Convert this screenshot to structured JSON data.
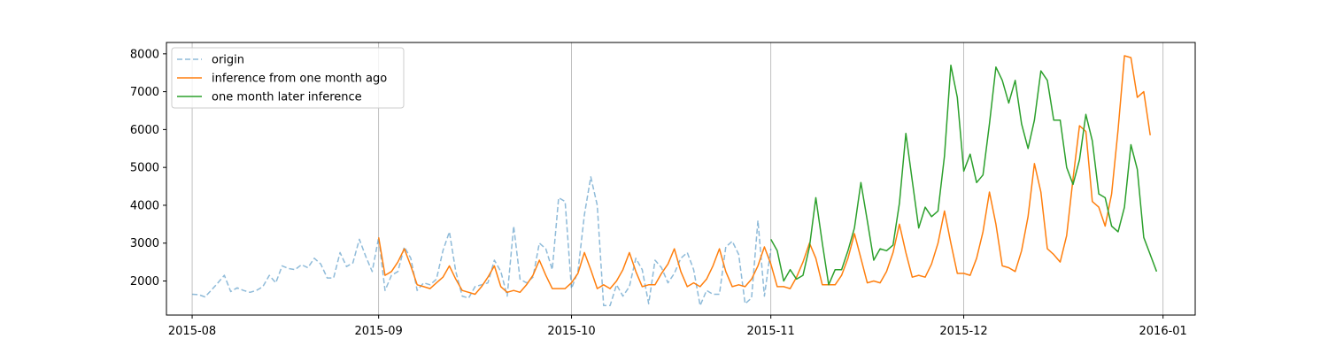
{
  "chart_data": {
    "type": "line",
    "title": "",
    "xlabel": "",
    "ylabel": "",
    "x_axis_type": "date",
    "xlim": [
      "2015-07-30",
      "2016-01-06"
    ],
    "ylim": [
      1100,
      8300
    ],
    "grid": "vertical",
    "legend_position": "upper-left",
    "x_ticks": [
      {
        "date": "2015-08-03",
        "label": "2015-08"
      },
      {
        "date": "2015-09-01",
        "label": "2015-09"
      },
      {
        "date": "2015-10-01",
        "label": "2015-10"
      },
      {
        "date": "2015-11-01",
        "label": "2015-11"
      },
      {
        "date": "2015-12-01",
        "label": "2015-12"
      },
      {
        "date": "2016-01-01",
        "label": "2016-01"
      }
    ],
    "y_ticks": [
      2000,
      3000,
      4000,
      5000,
      6000,
      7000,
      8000
    ],
    "series": [
      {
        "name": "origin",
        "color": "#1f77b4",
        "opacity": 0.5,
        "dash": "6,3",
        "start_date": "2015-08-03",
        "values": [
          1650,
          1640,
          1580,
          1760,
          1950,
          2150,
          1720,
          1820,
          1750,
          1700,
          1750,
          1850,
          2150,
          1950,
          2400,
          2330,
          2300,
          2430,
          2350,
          2600,
          2450,
          2080,
          2080,
          2750,
          2380,
          2480,
          3100,
          2650,
          2250,
          3150,
          1750,
          2150,
          2250,
          2900,
          2600,
          1750,
          1950,
          1900,
          2050,
          2800,
          3300,
          2250,
          1600,
          1550,
          1850,
          1900,
          1950,
          2550,
          2250,
          1600,
          3450,
          2050,
          1950,
          2100,
          3000,
          2850,
          2300,
          4200,
          4100,
          1800,
          2250,
          3750,
          4750,
          4000,
          1350,
          1350,
          1900,
          1600,
          1850,
          2600,
          2300,
          1400,
          2550,
          2350,
          1950,
          2200,
          2600,
          2750,
          2300,
          1350,
          1750,
          1650,
          1650,
          2900,
          3050,
          2700,
          1400,
          1550,
          3600,
          1600,
          2850
        ]
      },
      {
        "name": "inference from one month ago",
        "color": "#ff7f0e",
        "opacity": 1,
        "dash": "",
        "start_date": "2015-09-01",
        "values": [
          3150,
          2150,
          2250,
          2500,
          2850,
          2400,
          1900,
          1850,
          1800,
          1950,
          2100,
          2400,
          2050,
          1750,
          1700,
          1650,
          1850,
          2100,
          2400,
          1850,
          1700,
          1750,
          1700,
          1900,
          2150,
          2550,
          2150,
          1800,
          1800,
          1800,
          1950,
          2200,
          2750,
          2300,
          1800,
          1900,
          1800,
          2000,
          2300,
          2750,
          2250,
          1850,
          1900,
          1900,
          2200,
          2450,
          2850,
          2250,
          1850,
          1950,
          1850,
          2050,
          2400,
          2850,
          2250,
          1850,
          1900,
          1850,
          2050,
          2400,
          2900,
          2450,
          1850,
          1850,
          1800,
          2100,
          2500,
          3000,
          2600,
          1900,
          1900,
          1900,
          2150,
          2600,
          3250,
          2600,
          1950,
          2000,
          1950,
          2250,
          2750,
          3500,
          2750,
          2100,
          2150,
          2100,
          2450,
          3000,
          3850,
          3000,
          2200,
          2200,
          2150,
          2600,
          3300,
          4350,
          3500,
          2400,
          2350,
          2250,
          2800,
          3700,
          5100,
          4350,
          2850,
          2700,
          2500,
          3200,
          4700,
          6100,
          5950,
          4100,
          3950,
          3450,
          4300,
          6000,
          7950,
          7900,
          6850,
          7000,
          5850
        ]
      },
      {
        "name": "one month later inference",
        "color": "#2ca02c",
        "opacity": 1,
        "dash": "",
        "start_date": "2015-11-01",
        "values": [
          3100,
          2800,
          2000,
          2300,
          2050,
          2150,
          2900,
          4200,
          3000,
          1900,
          2300,
          2300,
          2800,
          3400,
          4600,
          3600,
          2550,
          2850,
          2800,
          2950,
          4050,
          5900,
          4650,
          3400,
          3950,
          3700,
          3850,
          5300,
          7700,
          6850,
          4900,
          5350,
          4600,
          4800,
          6150,
          7650,
          7300,
          6700,
          7300,
          6150,
          5500,
          6250,
          7550,
          7300,
          6250,
          6250,
          5000,
          4550,
          5200,
          6400,
          5700,
          4300,
          4200,
          3450,
          3300,
          3950,
          5600,
          4950,
          3150,
          2700,
          2250
        ]
      }
    ]
  }
}
